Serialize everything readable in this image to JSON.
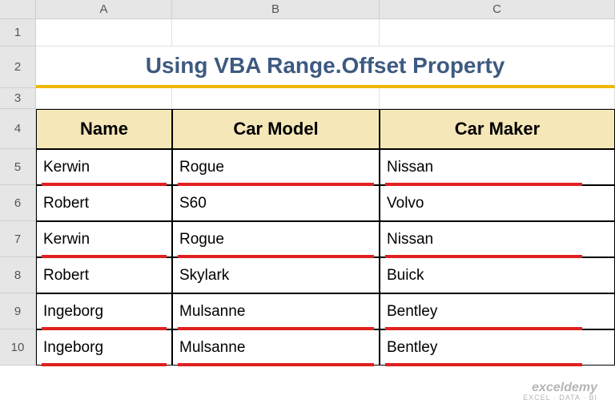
{
  "columns": [
    "A",
    "B",
    "C"
  ],
  "rows": [
    "1",
    "2",
    "3",
    "4",
    "5",
    "6",
    "7",
    "8",
    "9",
    "10"
  ],
  "title": "Using VBA Range.Offset Property",
  "headers": {
    "name": "Name",
    "model": "Car Model",
    "maker": "Car Maker"
  },
  "data": [
    {
      "name": "Kerwin",
      "model": "Rogue",
      "maker": "Nissan",
      "hl": [
        true,
        true,
        true
      ]
    },
    {
      "name": "Robert",
      "model": "S60",
      "maker": "Volvo",
      "hl": [
        false,
        false,
        false
      ]
    },
    {
      "name": "Kerwin",
      "model": "Rogue",
      "maker": "Nissan",
      "hl": [
        true,
        true,
        true
      ]
    },
    {
      "name": "Robert",
      "model": "Skylark",
      "maker": "Buick",
      "hl": [
        false,
        false,
        false
      ]
    },
    {
      "name": "Ingeborg",
      "model": "Mulsanne",
      "maker": "Bentley",
      "hl": [
        true,
        true,
        true
      ]
    },
    {
      "name": "Ingeborg",
      "model": "Mulsanne",
      "maker": "Bentley",
      "hl": [
        true,
        true,
        true
      ]
    }
  ],
  "watermark": {
    "line1": "exceldemy",
    "line2": "EXCEL · DATA · BI"
  }
}
